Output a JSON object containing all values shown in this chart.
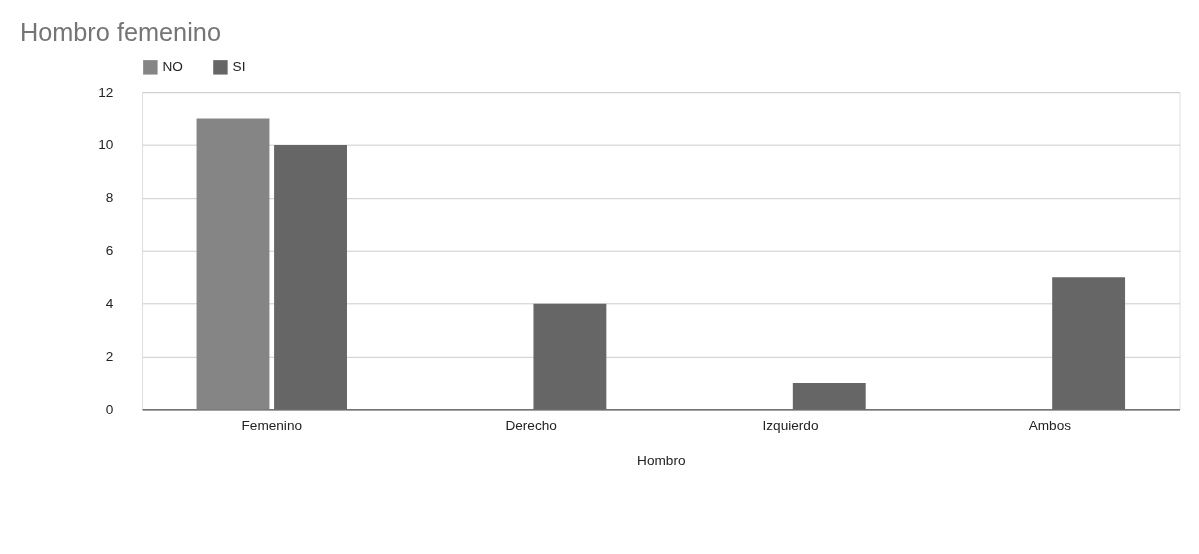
{
  "chart_data": {
    "type": "bar",
    "title": "Hombro femenino",
    "xlabel": "Hombro",
    "categories": [
      "Femenino",
      "Derecho",
      "Izquierdo",
      "Ambos"
    ],
    "series": [
      {
        "name": "NO",
        "color": "#858585",
        "values": [
          11,
          null,
          null,
          null
        ]
      },
      {
        "name": "SI",
        "color": "#666666",
        "values": [
          10,
          4,
          1,
          5
        ]
      }
    ],
    "ylim": [
      0,
      12
    ],
    "yticks": [
      0,
      2,
      4,
      6,
      8,
      10,
      12
    ],
    "grid": "y",
    "legend": "top"
  }
}
